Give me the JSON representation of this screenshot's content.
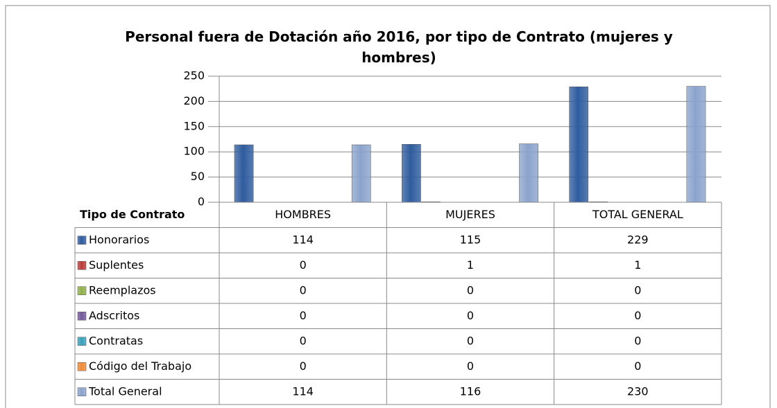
{
  "chart_data": {
    "type": "bar",
    "title": "Personal fuera de Dotación año 2016, por tipo de Contrato (mujeres y hombres)",
    "table_header": "Tipo de Contrato",
    "categories": [
      "HOMBRES",
      "MUJERES",
      "TOTAL GENERAL"
    ],
    "series": [
      {
        "name": "Honorarios",
        "color": "#2f5c9e",
        "values": [
          114,
          115,
          229
        ]
      },
      {
        "name": "Suplentes",
        "color": "#b83c3a",
        "values": [
          0,
          1,
          1
        ]
      },
      {
        "name": "Reemplazos",
        "color": "#8fb04c",
        "values": [
          0,
          0,
          0
        ]
      },
      {
        "name": "Adscritos",
        "color": "#74599a",
        "values": [
          0,
          0,
          0
        ]
      },
      {
        "name": "Contratas",
        "color": "#3aa0bb",
        "values": [
          0,
          0,
          0
        ]
      },
      {
        "name": "Código del Trabajo",
        "color": "#ef8a38",
        "values": [
          0,
          0,
          0
        ]
      },
      {
        "name": "Total General",
        "color": "#8ba3cc",
        "values": [
          114,
          116,
          230
        ]
      }
    ],
    "ylim": [
      0,
      250
    ],
    "yticks": [
      0,
      50,
      100,
      150,
      200,
      250
    ],
    "grid": true
  }
}
